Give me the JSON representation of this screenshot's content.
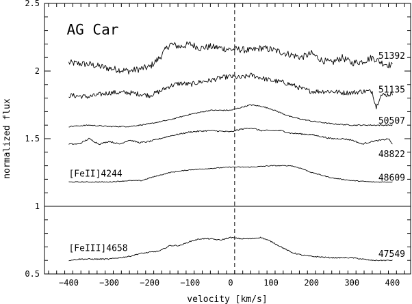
{
  "chart_data": {
    "type": "line",
    "title": "",
    "xlabel": "velocity [km/s]",
    "ylabel": "normalized flux",
    "xlim": [
      -460,
      445
    ],
    "ylim": [
      0.5,
      2.5
    ],
    "xticks": [
      -400,
      -300,
      -200,
      -100,
      0,
      100,
      200,
      300,
      400
    ],
    "yticks": [
      0.5,
      1,
      1.5,
      2,
      2.5
    ],
    "ytick_labels": [
      "0.5",
      "1",
      "1.5",
      "2",
      "2.5"
    ],
    "reference_line_y": 1.0,
    "dashed_line_x": 10,
    "grid": false,
    "annotations": [
      {
        "text": "AG Car",
        "x": -405,
        "y": 2.27,
        "role": "title"
      },
      {
        "text": "[FeII]4244",
        "x": -400,
        "y": 1.22,
        "role": "line-id"
      },
      {
        "text": "[FeIII]4658",
        "x": -400,
        "y": 0.67,
        "role": "line-id"
      }
    ],
    "series": [
      {
        "name": "51392",
        "x": [
          -400,
          -350,
          -300,
          -250,
          -200,
          -175,
          -150,
          -125,
          -100,
          -75,
          -50,
          -25,
          0,
          25,
          50,
          75,
          100,
          125,
          150,
          175,
          200,
          225,
          250,
          275,
          300,
          325,
          350,
          375,
          400
        ],
        "y": [
          2.06,
          2.05,
          2.02,
          2.0,
          2.03,
          2.1,
          2.2,
          2.18,
          2.2,
          2.17,
          2.18,
          2.17,
          2.16,
          2.16,
          2.15,
          2.17,
          2.16,
          2.14,
          2.12,
          2.1,
          2.13,
          2.08,
          2.06,
          2.1,
          2.06,
          2.07,
          2.1,
          2.06,
          2.04
        ],
        "noise": 0.025
      },
      {
        "name": "51135",
        "x": [
          -400,
          -350,
          -300,
          -250,
          -200,
          -175,
          -150,
          -125,
          -100,
          -75,
          -50,
          -25,
          0,
          25,
          50,
          75,
          100,
          125,
          150,
          175,
          200,
          225,
          250,
          275,
          300,
          325,
          350,
          360,
          370,
          400
        ],
        "y": [
          1.82,
          1.81,
          1.84,
          1.84,
          1.82,
          1.85,
          1.89,
          1.91,
          1.9,
          1.92,
          1.93,
          1.95,
          1.96,
          1.95,
          1.97,
          1.95,
          1.93,
          1.92,
          1.9,
          1.87,
          1.85,
          1.85,
          1.85,
          1.84,
          1.84,
          1.85,
          1.85,
          1.73,
          1.82,
          1.83
        ],
        "noise": 0.018
      },
      {
        "name": "50507",
        "x": [
          -400,
          -350,
          -300,
          -250,
          -200,
          -150,
          -100,
          -50,
          0,
          25,
          50,
          75,
          100,
          125,
          150,
          200,
          250,
          300,
          350,
          400
        ],
        "y": [
          1.59,
          1.6,
          1.59,
          1.59,
          1.61,
          1.64,
          1.68,
          1.71,
          1.71,
          1.73,
          1.75,
          1.74,
          1.72,
          1.69,
          1.66,
          1.63,
          1.61,
          1.6,
          1.6,
          1.6
        ],
        "noise": 0.004
      },
      {
        "name": "48822",
        "x": [
          -400,
          -375,
          -350,
          -325,
          -300,
          -275,
          -250,
          -225,
          -200,
          -150,
          -100,
          -50,
          0,
          25,
          50,
          75,
          100,
          125,
          150,
          200,
          250,
          275,
          300,
          325,
          350,
          375,
          390,
          400
        ],
        "y": [
          1.46,
          1.46,
          1.5,
          1.46,
          1.48,
          1.46,
          1.49,
          1.47,
          1.48,
          1.52,
          1.55,
          1.56,
          1.55,
          1.57,
          1.58,
          1.56,
          1.56,
          1.56,
          1.54,
          1.53,
          1.5,
          1.5,
          1.49,
          1.46,
          1.48,
          1.49,
          1.5,
          1.46
        ],
        "noise": 0.005
      },
      {
        "name": "48609",
        "x": [
          -400,
          -350,
          -300,
          -250,
          -220,
          -200,
          -150,
          -100,
          -50,
          0,
          10,
          50,
          100,
          150,
          175,
          200,
          250,
          300,
          350,
          400
        ],
        "y": [
          1.18,
          1.18,
          1.18,
          1.19,
          1.19,
          1.21,
          1.25,
          1.27,
          1.28,
          1.29,
          1.29,
          1.29,
          1.3,
          1.3,
          1.28,
          1.25,
          1.21,
          1.19,
          1.18,
          1.18
        ],
        "noise": 0.003
      },
      {
        "name": "47549",
        "x": [
          -400,
          -375,
          -350,
          -300,
          -250,
          -225,
          -200,
          -175,
          -150,
          -125,
          -100,
          -75,
          -50,
          -25,
          0,
          25,
          50,
          75,
          100,
          125,
          150,
          175,
          200,
          250,
          300,
          350,
          400
        ],
        "y": [
          0.6,
          0.61,
          0.61,
          0.61,
          0.63,
          0.65,
          0.66,
          0.67,
          0.71,
          0.71,
          0.74,
          0.76,
          0.76,
          0.75,
          0.77,
          0.76,
          0.76,
          0.77,
          0.74,
          0.7,
          0.66,
          0.64,
          0.63,
          0.62,
          0.62,
          0.6,
          0.6
        ],
        "noise": 0.004
      }
    ]
  }
}
